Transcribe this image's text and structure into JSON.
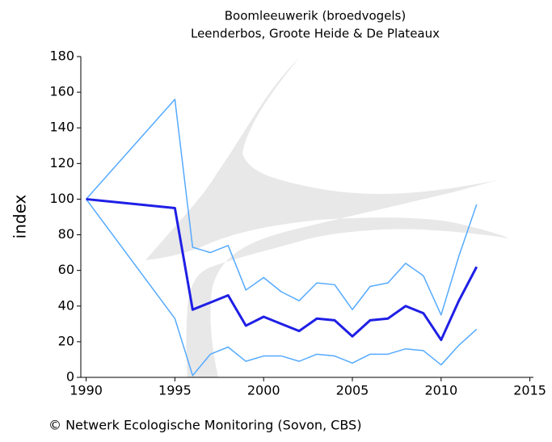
{
  "chart_data": {
    "type": "line",
    "title": "Boomleeuwerik (broedvogels)",
    "subtitle": "Leenderbos, Groote Heide & De Plateaux",
    "y_label": "index",
    "footer": "© Netwerk Ecologische Monitoring (Sovon, CBS)",
    "x": [
      1990,
      1995,
      1996,
      1997,
      1998,
      1999,
      2000,
      2001,
      2002,
      2003,
      2004,
      2005,
      2006,
      2007,
      2008,
      2009,
      2010,
      2011,
      2012
    ],
    "series": [
      {
        "color": "#55aaff",
        "width": 1.5,
        "values": [
          100,
          156,
          73,
          70,
          74,
          49,
          56,
          48,
          43,
          53,
          52,
          38,
          51,
          53,
          64,
          57,
          35,
          68,
          97
        ]
      },
      {
        "color": "#55aaff",
        "width": 1.5,
        "values": [
          100,
          33,
          1,
          13,
          17,
          9,
          12,
          12,
          9,
          13,
          12,
          8,
          13,
          13,
          16,
          15,
          7,
          18,
          27
        ]
      },
      {
        "color": "#1f1fe6",
        "width": 3,
        "values": [
          100,
          95,
          38,
          42,
          46,
          29,
          34,
          30,
          26,
          33,
          32,
          23,
          32,
          33,
          40,
          36,
          21,
          43,
          62
        ]
      }
    ],
    "xlim": [
      1989.7,
      2015.2
    ],
    "xticks": [
      1990,
      1995,
      2000,
      2005,
      2010,
      2015
    ],
    "ylim": [
      0,
      180
    ],
    "yticks": [
      0,
      20,
      40,
      60,
      80,
      100,
      120,
      140,
      160,
      180
    ],
    "grid": false
  }
}
